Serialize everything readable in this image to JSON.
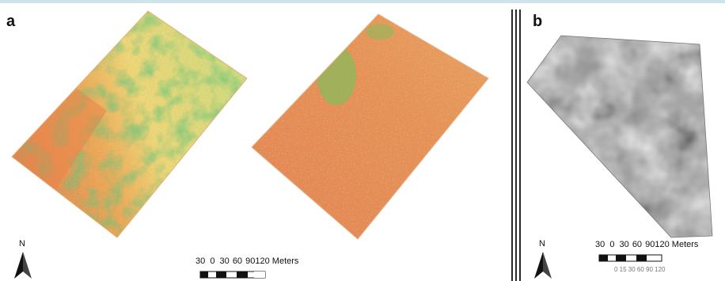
{
  "panels": {
    "a": {
      "label": "a"
    },
    "b": {
      "label": "b"
    }
  },
  "north_arrow": {
    "label": "N"
  },
  "scale_bars": {
    "a": {
      "ticks": [
        "30",
        "0",
        "30",
        "60",
        "90",
        "120"
      ],
      "unit": "Meters"
    },
    "b": {
      "ticks": [
        "30",
        "0",
        "30",
        "60",
        "90",
        "120"
      ],
      "unit": "Meters",
      "secondary_text": "0 15 30    60    90    120"
    }
  },
  "colors": {
    "low": "#e8743c",
    "mid_low": "#f0a850",
    "mid": "#f4e27a",
    "high": "#7cc05c",
    "very_high": "#1f8f2f",
    "elevation_dark": "#3a3a3a",
    "elevation_light": "#f2f2f2"
  }
}
